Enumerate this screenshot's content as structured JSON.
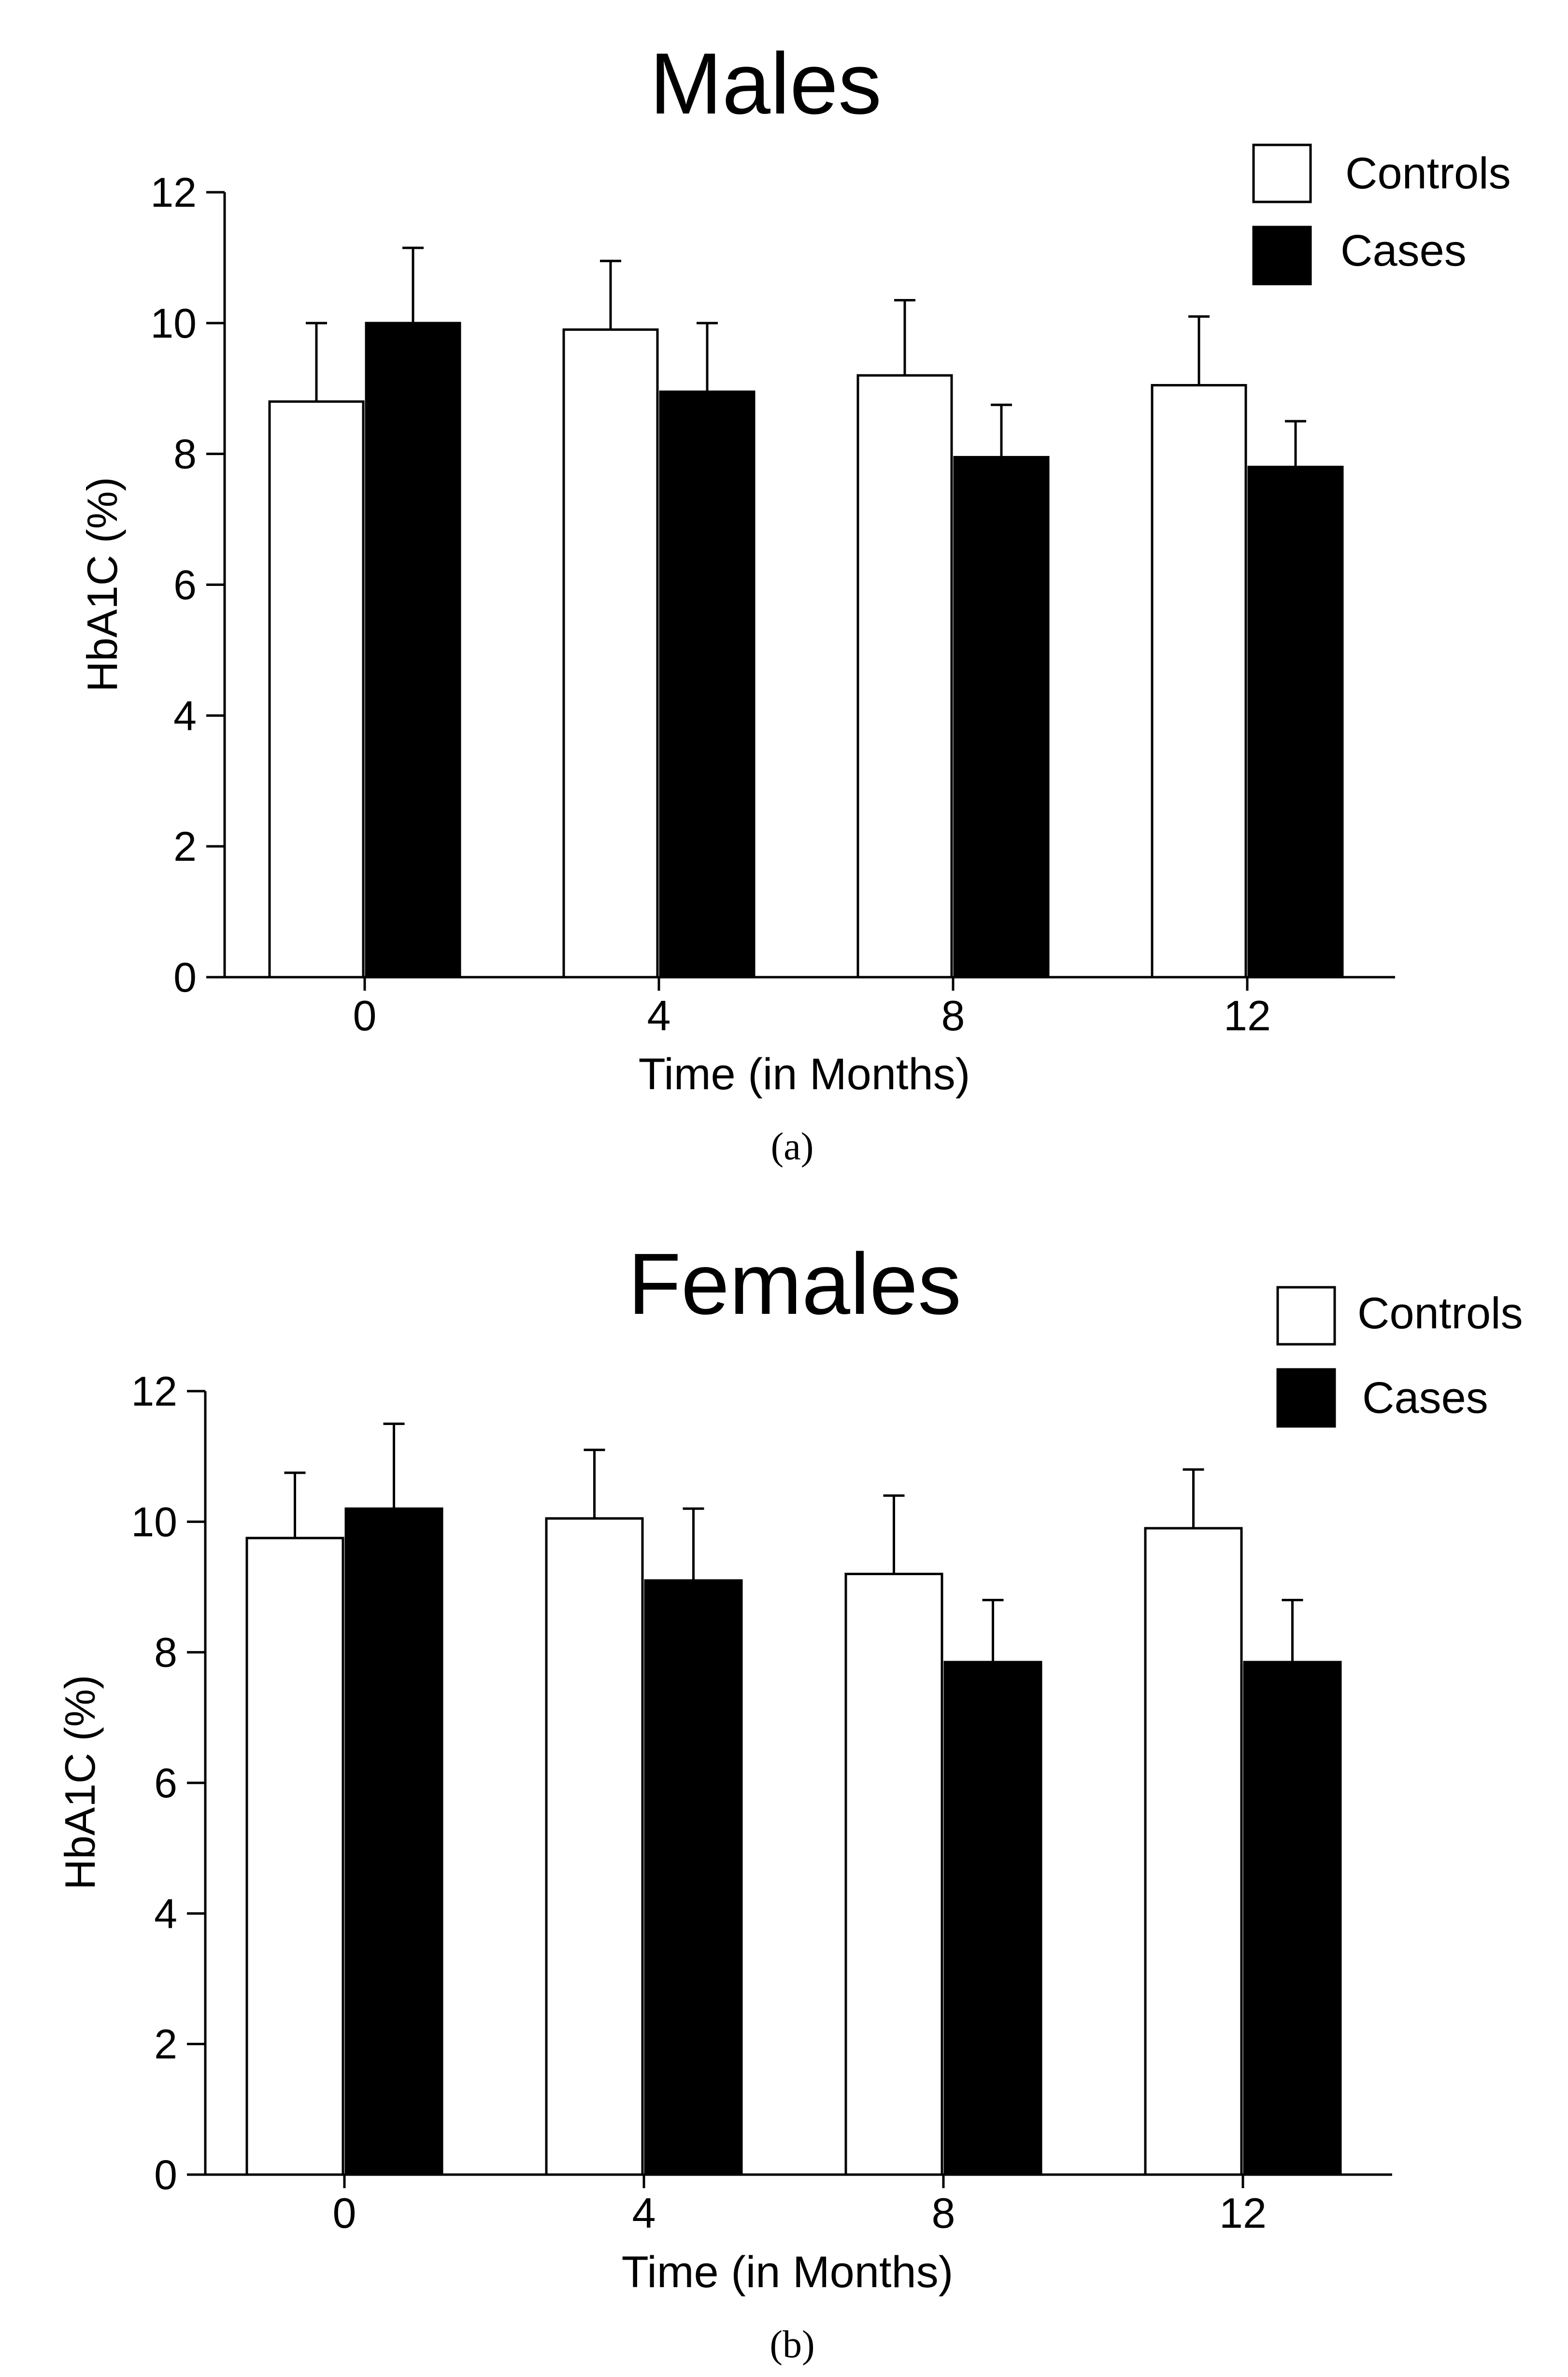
{
  "chart_data": [
    {
      "type": "bar",
      "panel": "a",
      "caption": "(a)",
      "title": "Males",
      "xlabel": "Time (in Months)",
      "ylabel": "HbA1C (%)",
      "ylim": [
        0,
        12
      ],
      "yticks": [
        "0",
        "2",
        "4",
        "6",
        "8",
        "10",
        "12"
      ],
      "categories": [
        "0",
        "4",
        "8",
        "12"
      ],
      "legend_position": "top-right",
      "series": [
        {
          "name": "Controls",
          "fill": "#ffffff",
          "values": [
            8.8,
            9.9,
            9.2,
            9.05
          ],
          "errors": [
            1.2,
            1.05,
            1.15,
            1.05
          ]
        },
        {
          "name": "Cases",
          "fill": "#000000",
          "values": [
            10.0,
            8.95,
            7.95,
            7.8
          ],
          "errors": [
            1.15,
            1.05,
            0.8,
            0.7
          ]
        }
      ]
    },
    {
      "type": "bar",
      "panel": "b",
      "caption": "(b)",
      "title": "Females",
      "xlabel": "Time (in Months)",
      "ylabel": "HbA1C (%)",
      "ylim": [
        0,
        12
      ],
      "yticks": [
        "0",
        "2",
        "4",
        "6",
        "8",
        "10",
        "12"
      ],
      "categories": [
        "0",
        "4",
        "8",
        "12"
      ],
      "legend_position": "top-right",
      "series": [
        {
          "name": "Controls",
          "fill": "#ffffff",
          "values": [
            9.75,
            10.05,
            9.2,
            9.9
          ],
          "errors": [
            1.0,
            1.05,
            1.2,
            0.9
          ]
        },
        {
          "name": "Cases",
          "fill": "#000000",
          "values": [
            10.2,
            9.1,
            7.85,
            7.85
          ],
          "errors": [
            1.3,
            1.1,
            0.95,
            0.95
          ]
        }
      ]
    }
  ]
}
